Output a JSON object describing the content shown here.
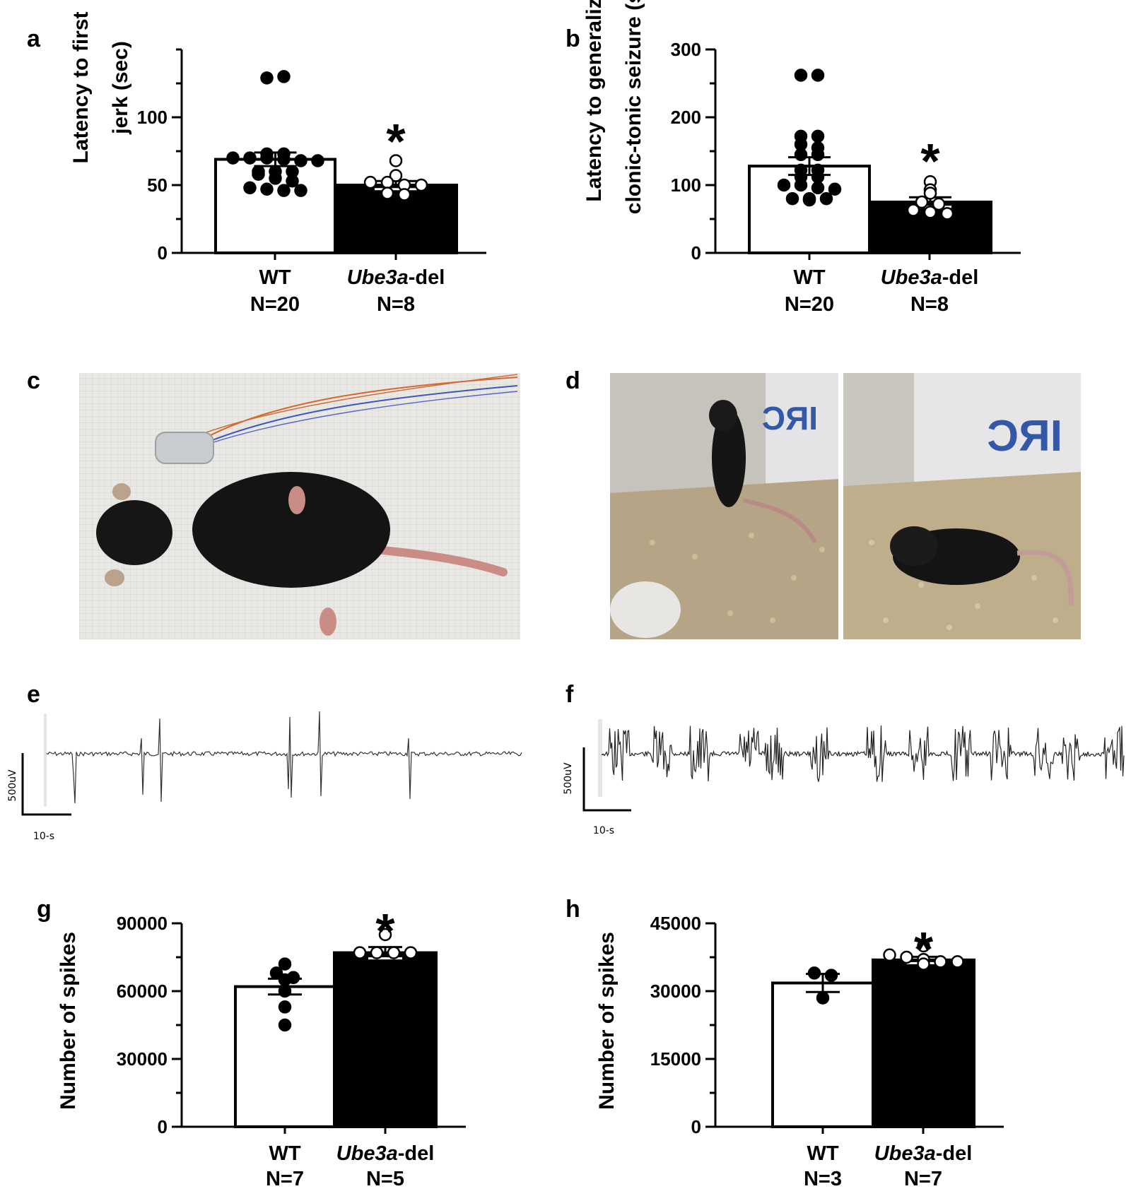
{
  "panels": {
    "a": "a",
    "b": "b",
    "c": "c",
    "d": "d",
    "e": "e",
    "f": "f",
    "g": "g",
    "h": "h"
  },
  "significance": "*",
  "chart_data": [
    {
      "panel": "a",
      "type": "bar",
      "ylabel_lines": [
        "Latency to first",
        "jerk (sec)"
      ],
      "ylim": [
        0,
        150
      ],
      "yticks": [
        0,
        50,
        100
      ],
      "groups": [
        {
          "name": "WT",
          "n": "N=20",
          "mean": 69,
          "sem": 5,
          "points": [
            129,
            130,
            73,
            73,
            70,
            70,
            70,
            69,
            68,
            68,
            60,
            60,
            60,
            58,
            55,
            53,
            48,
            47,
            46,
            46
          ]
        },
        {
          "name_italic": "Ube3a",
          "name_suffix": "-del",
          "n": "N=8",
          "mean": 50,
          "sem": 3,
          "points": [
            68,
            57,
            52,
            52,
            50,
            50,
            44,
            43
          ]
        }
      ]
    },
    {
      "panel": "b",
      "type": "bar",
      "ylabel_lines": [
        "Latency to generalized",
        "clonic-tonic seizure (sec)"
      ],
      "ylim": [
        0,
        300
      ],
      "yticks": [
        0,
        100,
        200,
        300
      ],
      "groups": [
        {
          "name": "WT",
          "n": "N=20",
          "mean": 128,
          "sem": 13,
          "points": [
            262,
            262,
            172,
            172,
            160,
            155,
            145,
            145,
            122,
            122,
            112,
            112,
            100,
            100,
            96,
            94,
            80,
            80,
            80,
            78
          ]
        },
        {
          "name_italic": "Ube3a",
          "name_suffix": "-del",
          "n": "N=8",
          "mean": 75,
          "sem": 7,
          "points": [
            105,
            93,
            88,
            75,
            72,
            63,
            60,
            58
          ]
        }
      ]
    },
    {
      "panel": "g",
      "type": "bar",
      "ylabel_lines": [
        "Number of spikes"
      ],
      "ylim": [
        0,
        90000
      ],
      "yticks": [
        0,
        30000,
        60000,
        90000
      ],
      "groups": [
        {
          "name": "WT",
          "n": "N=7",
          "mean": 62000,
          "sem": 3500,
          "points": [
            72000,
            68000,
            66000,
            65000,
            60000,
            53000,
            45000
          ]
        },
        {
          "name_italic": "Ube3a",
          "name_suffix": "-del",
          "n": "N=5",
          "mean": 77000,
          "sem": 2500,
          "points": [
            85000,
            77000,
            77000,
            77000,
            77000
          ]
        }
      ]
    },
    {
      "panel": "h",
      "type": "bar",
      "ylabel_lines": [
        "Number of spikes"
      ],
      "ylim": [
        0,
        45000
      ],
      "yticks": [
        0,
        15000,
        30000,
        45000
      ],
      "groups": [
        {
          "name": "WT",
          "n": "N=3",
          "mean": 31800,
          "sem": 2000,
          "points": [
            34000,
            33500,
            28500
          ]
        },
        {
          "name_italic": "Ube3a",
          "name_suffix": "-del",
          "n": "N=7",
          "mean": 36900,
          "sem": 700,
          "points": [
            40000,
            38000,
            37500,
            37000,
            36500,
            36500,
            36000
          ]
        }
      ]
    }
  ],
  "traces": {
    "e": {
      "scale_v": "500uV",
      "scale_t": "10-s"
    },
    "f": {
      "scale_v": "500uV",
      "scale_t": "10-s"
    }
  }
}
